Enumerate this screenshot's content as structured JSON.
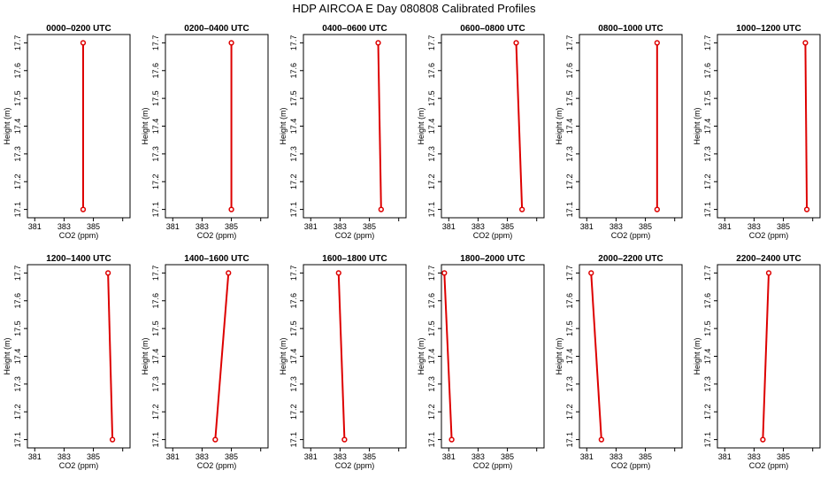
{
  "title": "HDP AIRCOA E  Day 080808  Calibrated Profiles",
  "colors": {
    "profile": "#dd0000",
    "axis": "#000000",
    "background": "#ffffff"
  },
  "chart_data": [
    {
      "type": "line",
      "title": "0000–0200 UTC",
      "xlabel": "CO2 (ppm)",
      "ylabel": "Height (m)",
      "xlim": [
        380.5,
        387.5
      ],
      "ylim": [
        17.07,
        17.73
      ],
      "xticks": [
        381,
        383,
        385
      ],
      "yticks": [
        17.1,
        17.2,
        17.3,
        17.4,
        17.5,
        17.6,
        17.7
      ],
      "grid": false,
      "series": [
        {
          "x": [
            384.3,
            384.3
          ],
          "y": [
            17.1,
            17.7
          ]
        }
      ]
    },
    {
      "type": "line",
      "title": "0200–0400 UTC",
      "xlabel": "CO2 (ppm)",
      "ylabel": "Height (m)",
      "xlim": [
        380.5,
        387.5
      ],
      "ylim": [
        17.07,
        17.73
      ],
      "xticks": [
        381,
        383,
        385
      ],
      "yticks": [
        17.1,
        17.2,
        17.3,
        17.4,
        17.5,
        17.6,
        17.7
      ],
      "grid": false,
      "series": [
        {
          "x": [
            385.0,
            385.0
          ],
          "y": [
            17.1,
            17.7
          ]
        }
      ]
    },
    {
      "type": "line",
      "title": "0400–0600 UTC",
      "xlabel": "CO2 (ppm)",
      "ylabel": "Height (m)",
      "xlim": [
        380.5,
        387.5
      ],
      "ylim": [
        17.07,
        17.73
      ],
      "xticks": [
        381,
        383,
        385
      ],
      "yticks": [
        17.1,
        17.2,
        17.3,
        17.4,
        17.5,
        17.6,
        17.7
      ],
      "grid": false,
      "series": [
        {
          "x": [
            385.8,
            385.6
          ],
          "y": [
            17.1,
            17.7
          ]
        }
      ]
    },
    {
      "type": "line",
      "title": "0600–0800 UTC",
      "xlabel": "CO2 (ppm)",
      "ylabel": "Height (m)",
      "xlim": [
        380.5,
        387.5
      ],
      "ylim": [
        17.07,
        17.73
      ],
      "xticks": [
        381,
        383,
        385
      ],
      "yticks": [
        17.1,
        17.2,
        17.3,
        17.4,
        17.5,
        17.6,
        17.7
      ],
      "grid": false,
      "series": [
        {
          "x": [
            386.0,
            385.6
          ],
          "y": [
            17.1,
            17.7
          ]
        }
      ]
    },
    {
      "type": "line",
      "title": "0800–1000 UTC",
      "xlabel": "CO2 (ppm)",
      "ylabel": "Height (m)",
      "xlim": [
        380.5,
        387.5
      ],
      "ylim": [
        17.07,
        17.73
      ],
      "xticks": [
        381,
        383,
        385
      ],
      "yticks": [
        17.1,
        17.2,
        17.3,
        17.4,
        17.5,
        17.6,
        17.7
      ],
      "grid": false,
      "series": [
        {
          "x": [
            385.8,
            385.8
          ],
          "y": [
            17.1,
            17.7
          ]
        }
      ]
    },
    {
      "type": "line",
      "title": "1000–1200 UTC",
      "xlabel": "CO2 (ppm)",
      "ylabel": "Height (m)",
      "xlim": [
        380.5,
        387.5
      ],
      "ylim": [
        17.07,
        17.73
      ],
      "xticks": [
        381,
        383,
        385
      ],
      "yticks": [
        17.1,
        17.2,
        17.3,
        17.4,
        17.5,
        17.6,
        17.7
      ],
      "grid": false,
      "series": [
        {
          "x": [
            386.6,
            386.5
          ],
          "y": [
            17.1,
            17.7
          ]
        }
      ]
    },
    {
      "type": "line",
      "title": "1200–1400 UTC",
      "xlabel": "CO2 (ppm)",
      "ylabel": "Height (m)",
      "xlim": [
        380.5,
        387.5
      ],
      "ylim": [
        17.07,
        17.73
      ],
      "xticks": [
        381,
        383,
        385
      ],
      "yticks": [
        17.1,
        17.2,
        17.3,
        17.4,
        17.5,
        17.6,
        17.7
      ],
      "grid": false,
      "series": [
        {
          "x": [
            386.3,
            386.0
          ],
          "y": [
            17.1,
            17.7
          ]
        }
      ]
    },
    {
      "type": "line",
      "title": "1400–1600 UTC",
      "xlabel": "CO2 (ppm)",
      "ylabel": "Height (m)",
      "xlim": [
        380.5,
        387.5
      ],
      "ylim": [
        17.07,
        17.73
      ],
      "xticks": [
        381,
        383,
        385
      ],
      "yticks": [
        17.1,
        17.2,
        17.3,
        17.4,
        17.5,
        17.6,
        17.7
      ],
      "grid": false,
      "series": [
        {
          "x": [
            383.9,
            384.8
          ],
          "y": [
            17.1,
            17.7
          ]
        }
      ]
    },
    {
      "type": "line",
      "title": "1600–1800 UTC",
      "xlabel": "CO2 (ppm)",
      "ylabel": "Height (m)",
      "xlim": [
        380.5,
        387.5
      ],
      "ylim": [
        17.07,
        17.73
      ],
      "xticks": [
        381,
        383,
        385
      ],
      "yticks": [
        17.1,
        17.2,
        17.3,
        17.4,
        17.5,
        17.6,
        17.7
      ],
      "grid": false,
      "series": [
        {
          "x": [
            383.3,
            382.9
          ],
          "y": [
            17.1,
            17.7
          ]
        }
      ]
    },
    {
      "type": "line",
      "title": "1800–2000 UTC",
      "xlabel": "CO2 (ppm)",
      "ylabel": "Height (m)",
      "xlim": [
        380.5,
        387.5
      ],
      "ylim": [
        17.07,
        17.73
      ],
      "xticks": [
        381,
        383,
        385
      ],
      "yticks": [
        17.1,
        17.2,
        17.3,
        17.4,
        17.5,
        17.6,
        17.7
      ],
      "grid": false,
      "series": [
        {
          "x": [
            381.2,
            380.7
          ],
          "y": [
            17.1,
            17.7
          ]
        }
      ]
    },
    {
      "type": "line",
      "title": "2000–2200 UTC",
      "xlabel": "CO2 (ppm)",
      "ylabel": "Height (m)",
      "xlim": [
        380.5,
        387.5
      ],
      "ylim": [
        17.07,
        17.73
      ],
      "xticks": [
        381,
        383,
        385
      ],
      "yticks": [
        17.1,
        17.2,
        17.3,
        17.4,
        17.5,
        17.6,
        17.7
      ],
      "grid": false,
      "series": [
        {
          "x": [
            382.0,
            381.3
          ],
          "y": [
            17.1,
            17.7
          ]
        }
      ]
    },
    {
      "type": "line",
      "title": "2200–2400 UTC",
      "xlabel": "CO2 (ppm)",
      "ylabel": "Height (m)",
      "xlim": [
        380.5,
        387.5
      ],
      "ylim": [
        17.07,
        17.73
      ],
      "xticks": [
        381,
        383,
        385
      ],
      "yticks": [
        17.1,
        17.2,
        17.3,
        17.4,
        17.5,
        17.6,
        17.7
      ],
      "grid": false,
      "series": [
        {
          "x": [
            383.6,
            384.0
          ],
          "y": [
            17.1,
            17.7
          ]
        }
      ]
    }
  ]
}
